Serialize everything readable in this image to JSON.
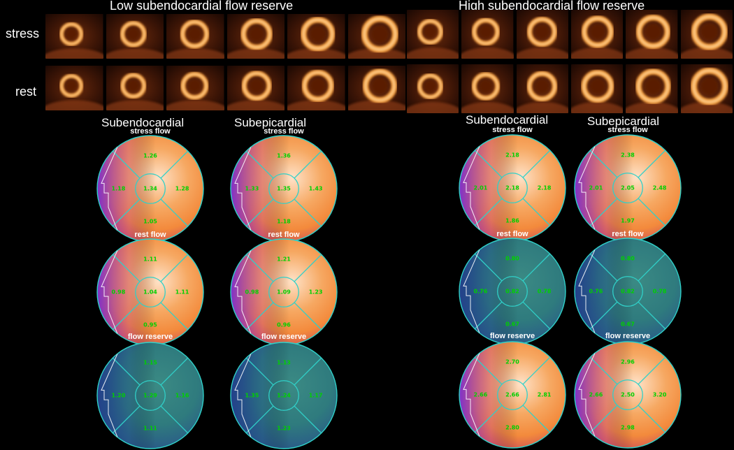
{
  "groups": [
    {
      "title": "Low subendocardial flow reserve",
      "row_labels": [
        "stress",
        "rest"
      ],
      "panels": {
        "stress": 6,
        "rest": 6
      },
      "layers": [
        {
          "label": "Subendocardial",
          "maps": [
            {
              "title": "stress flow",
              "scheme": "hot",
              "values": {
                "top": "1.26",
                "left": "1.18",
                "center": "1.34",
                "right": "1.28",
                "bottom": "1.05"
              }
            },
            {
              "title": "rest flow",
              "scheme": "hot",
              "values": {
                "top": "1.11",
                "left": "0.98",
                "center": "1.04",
                "right": "1.11",
                "bottom": "0.95"
              }
            },
            {
              "title": "flow reserve",
              "scheme": "teal",
              "values": {
                "top": "1.15",
                "left": "1.20",
                "center": "1.29",
                "right": "1.16",
                "bottom": "1.11"
              }
            }
          ]
        },
        {
          "label": "Subepicardial",
          "maps": [
            {
              "title": "stress flow",
              "scheme": "hot",
              "values": {
                "top": "1.36",
                "left": "1.33",
                "center": "1.35",
                "right": "1.43",
                "bottom": "1.18"
              }
            },
            {
              "title": "rest flow",
              "scheme": "hot",
              "values": {
                "top": "1.21",
                "left": "0.98",
                "center": "1.09",
                "right": "1.23",
                "bottom": "0.96"
              }
            },
            {
              "title": "flow reserve",
              "scheme": "teal",
              "values": {
                "top": "1.13",
                "left": "1.35",
                "center": "1.24",
                "right": "1.17",
                "bottom": "1.23"
              }
            }
          ]
        }
      ]
    },
    {
      "title": "High subendocardial flow reserve",
      "row_labels": [],
      "panels": {
        "stress": 6,
        "rest": 6
      },
      "layers": [
        {
          "label": "Subendocardial",
          "maps": [
            {
              "title": "stress flow",
              "scheme": "hot",
              "values": {
                "top": "2.18",
                "left": "2.01",
                "center": "2.18",
                "right": "2.18",
                "bottom": "1.86"
              }
            },
            {
              "title": "rest flow",
              "scheme": "teal",
              "values": {
                "top": "0.80",
                "left": "0.76",
                "center": "0.82",
                "right": "0.78",
                "bottom": "0.67"
              }
            },
            {
              "title": "flow reserve",
              "scheme": "hot",
              "values": {
                "top": "2.70",
                "left": "2.66",
                "center": "2.66",
                "right": "2.81",
                "bottom": "2.80"
              }
            }
          ]
        },
        {
          "label": "Subepicardial",
          "maps": [
            {
              "title": "stress flow",
              "scheme": "hot",
              "values": {
                "top": "2.38",
                "left": "2.01",
                "center": "2.05",
                "right": "2.48",
                "bottom": "1.97"
              }
            },
            {
              "title": "rest flow",
              "scheme": "teal",
              "values": {
                "top": "0.80",
                "left": "0.76",
                "center": "0.82",
                "right": "0.78",
                "bottom": "0.67"
              }
            },
            {
              "title": "flow reserve",
              "scheme": "hot",
              "values": {
                "top": "2.96",
                "left": "2.66",
                "center": "2.50",
                "right": "3.20",
                "bottom": "2.98"
              }
            }
          ]
        }
      ]
    }
  ],
  "colors": {
    "hot_core": "#ffe2c8",
    "hot_mid": "#f38a3c",
    "hot_edge": "#7a2fd0",
    "teal_core": "#2f7b7e",
    "teal_edge": "#233f8a",
    "ring": "#30d0c8",
    "value": "#00d000"
  }
}
